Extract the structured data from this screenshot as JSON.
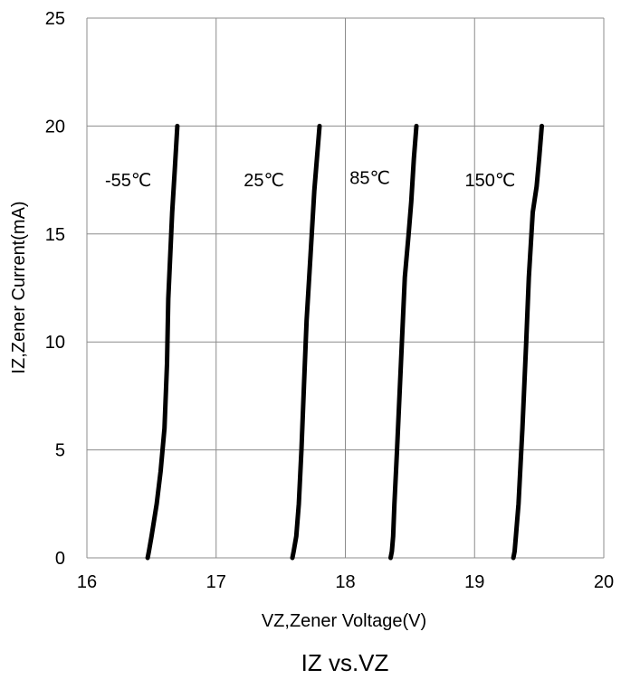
{
  "chart_data": {
    "type": "line",
    "caption": "IZ vs.VZ",
    "xlabel": "VZ,Zener Voltage(V)",
    "ylabel": "IZ,Zener Current(mA)",
    "xlim": [
      16,
      20
    ],
    "ylim": [
      0,
      25
    ],
    "xticks": [
      "16",
      "17",
      "18",
      "19",
      "20"
    ],
    "yticks": [
      "0",
      "5",
      "10",
      "15",
      "20",
      "25"
    ],
    "grid": true,
    "line_color": "#000000",
    "series": [
      {
        "name": "-55℃",
        "points": [
          [
            16.47,
            0
          ],
          [
            16.48,
            0.3
          ],
          [
            16.5,
            1
          ],
          [
            16.54,
            2.5
          ],
          [
            16.57,
            4
          ],
          [
            16.6,
            6
          ],
          [
            16.62,
            9
          ],
          [
            16.63,
            12
          ],
          [
            16.66,
            16
          ],
          [
            16.68,
            18
          ],
          [
            16.7,
            20
          ]
        ]
      },
      {
        "name": "25℃",
        "points": [
          [
            17.59,
            0
          ],
          [
            17.6,
            0.3
          ],
          [
            17.62,
            1
          ],
          [
            17.64,
            2.5
          ],
          [
            17.66,
            5
          ],
          [
            17.68,
            8
          ],
          [
            17.7,
            11
          ],
          [
            17.73,
            14
          ],
          [
            17.76,
            17
          ],
          [
            17.78,
            18.5
          ],
          [
            17.8,
            20
          ]
        ]
      },
      {
        "name": "85℃",
        "points": [
          [
            18.35,
            0
          ],
          [
            18.36,
            0.3
          ],
          [
            18.37,
            1
          ],
          [
            18.38,
            2.5
          ],
          [
            18.4,
            5
          ],
          [
            18.43,
            9
          ],
          [
            18.46,
            13
          ],
          [
            18.49,
            15
          ],
          [
            18.51,
            16.5
          ],
          [
            18.53,
            18.5
          ],
          [
            18.55,
            20
          ]
        ]
      },
      {
        "name": "150℃",
        "points": [
          [
            19.3,
            0
          ],
          [
            19.31,
            0.3
          ],
          [
            19.32,
            1
          ],
          [
            19.34,
            2.5
          ],
          [
            19.37,
            6
          ],
          [
            19.4,
            10
          ],
          [
            19.42,
            13
          ],
          [
            19.45,
            16
          ],
          [
            19.48,
            17.2
          ],
          [
            19.5,
            18.5
          ],
          [
            19.52,
            20
          ]
        ]
      }
    ],
    "series_label_positions": [
      {
        "x": 16.32,
        "y": 17.5
      },
      {
        "x": 17.37,
        "y": 17.5
      },
      {
        "x": 18.19,
        "y": 17.6
      },
      {
        "x": 19.12,
        "y": 17.5
      }
    ]
  }
}
